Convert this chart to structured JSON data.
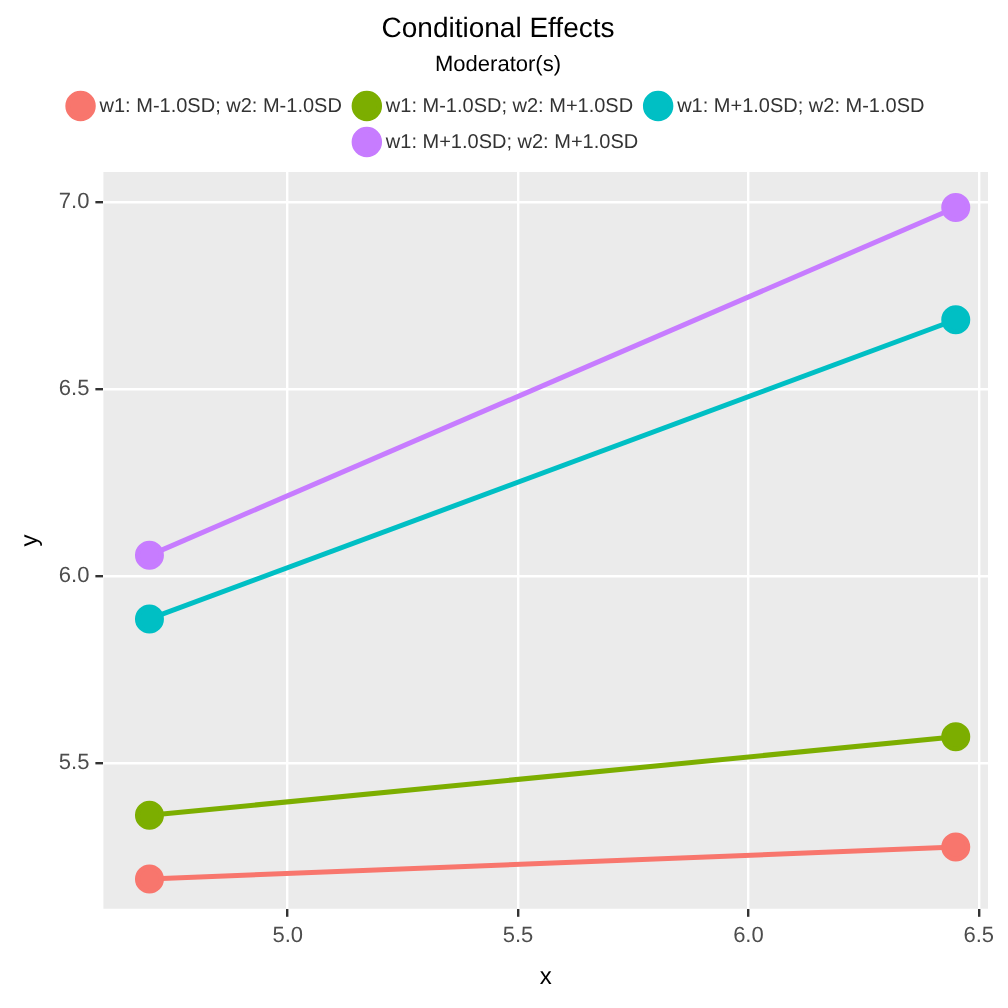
{
  "chart_data": {
    "type": "line",
    "title": "Conditional Effects",
    "xlabel": "x",
    "ylabel": "y",
    "legend_title": "Moderator(s)",
    "xlim": [
      4.6,
      6.52
    ],
    "xticks": [
      {
        "value": 5,
        "label": "5.0"
      },
      5.5,
      {
        "value": 6,
        "label": "6.0"
      },
      6.5
    ],
    "ylim": [
      5.11,
      7.08
    ],
    "yticks": [
      5.5,
      {
        "value": 6,
        "label": "6.0"
      },
      6.5,
      {
        "value": 7,
        "label": "7.0"
      }
    ],
    "x": [
      4.7,
      6.45
    ],
    "grid": true,
    "legend": "top",
    "marker": "circle",
    "line_style": "solid",
    "series": [
      {
        "name": "w1: M-1.0SD; w2: M-1.0SD",
        "color": "#f8766d",
        "values": [
          5.19,
          5.275
        ]
      },
      {
        "name": "w1: M-1.0SD; w2: M+1.0SD",
        "color": "#7cae00",
        "values": [
          5.36,
          5.57
        ]
      },
      {
        "name": "w1: M+1.0SD; w2: M-1.0SD",
        "color": "#00bfc4",
        "values": [
          5.885,
          6.685
        ]
      },
      {
        "name": "w1: M+1.0SD; w2: M+1.0SD",
        "color": "#c77cff",
        "values": [
          6.055,
          6.985
        ]
      }
    ]
  }
}
